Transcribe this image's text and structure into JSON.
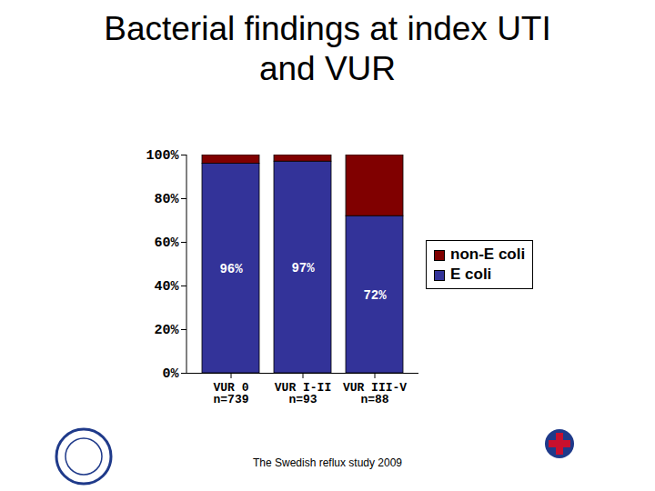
{
  "chart_data": {
    "type": "bar",
    "title": "Bacterial findings at index UTI\nand VUR",
    "stacked": true,
    "categories": [
      "VUR 0\nn=739",
      "VUR I-II\nn=93",
      "VUR III-V\nn=88"
    ],
    "series": [
      {
        "name": "E coli",
        "color": "#333399",
        "values": [
          96,
          97,
          72
        ],
        "data_labels": true,
        "value_labels": [
          "96%",
          "97%",
          "72%"
        ]
      },
      {
        "name": "non-E coli",
        "color": "#800000",
        "values": [
          4,
          3,
          28
        ]
      }
    ],
    "ylim": [
      0,
      100
    ],
    "yticks": [
      {
        "value": 0,
        "label": "0%"
      },
      {
        "value": 20,
        "label": "20%"
      },
      {
        "value": 40,
        "label": "40%"
      },
      {
        "value": 60,
        "label": "60%"
      },
      {
        "value": 80,
        "label": "80%"
      },
      {
        "value": 100,
        "label": "100%"
      }
    ],
    "grid": false,
    "legend": "right",
    "caption": "The Swedish reflux study 2009"
  }
}
